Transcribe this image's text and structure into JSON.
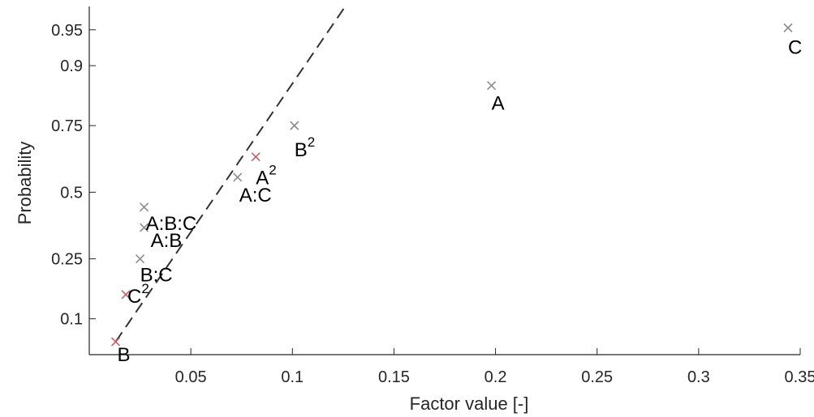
{
  "chart_data": {
    "type": "scatter",
    "title": "",
    "xlabel": "Factor value [-]",
    "ylabel": "Probability",
    "xlim": [
      0,
      0.35
    ],
    "ylim": [
      0.05,
      0.97
    ],
    "x_ticks": [
      {
        "value": 0.05,
        "label": "0.05"
      },
      {
        "value": 0.1,
        "label": "0.1"
      },
      {
        "value": 0.15,
        "label": "0.15"
      },
      {
        "value": 0.2,
        "label": "0.2"
      },
      {
        "value": 0.25,
        "label": "0.25"
      },
      {
        "value": 0.3,
        "label": "0.3"
      },
      {
        "value": 0.35,
        "label": "0.35"
      }
    ],
    "y_ticks": [
      {
        "value": 0.1,
        "label": "0.1"
      },
      {
        "value": 0.25,
        "label": "0.25"
      },
      {
        "value": 0.5,
        "label": "0.5"
      },
      {
        "value": 0.75,
        "label": "0.75"
      },
      {
        "value": 0.9,
        "label": "0.9"
      },
      {
        "value": 0.95,
        "label": "0.95"
      }
    ],
    "y_scale": "normal-probability",
    "grid": false,
    "marker_color": "#8c8c8c",
    "highlight_marker_color": "#c0606a",
    "reference_line": {
      "style": "dashed",
      "color": "#333333",
      "from": {
        "x": 0.013,
        "y": 0.065
      },
      "to": {
        "x": 0.126,
        "y": 0.97
      }
    },
    "points": [
      {
        "x": 0.013,
        "y": 0.065,
        "label": "B",
        "sup": "",
        "highlight": true
      },
      {
        "x": 0.018,
        "y": 0.15,
        "label": "C",
        "sup": "2",
        "highlight": true
      },
      {
        "x": 0.025,
        "y": 0.25,
        "label": "B:C",
        "sup": "",
        "highlight": false
      },
      {
        "x": 0.027,
        "y": 0.36,
        "label": "A:B",
        "sup": "",
        "highlight": false
      },
      {
        "x": 0.027,
        "y": 0.44,
        "label": "A:B:C",
        "sup": "",
        "highlight": false
      },
      {
        "x": 0.073,
        "y": 0.56,
        "label": "A:C",
        "sup": "",
        "highlight": false
      },
      {
        "x": 0.082,
        "y": 0.64,
        "label": "A",
        "sup": "2",
        "highlight": true
      },
      {
        "x": 0.101,
        "y": 0.75,
        "label": "B",
        "sup": "2",
        "highlight": false
      },
      {
        "x": 0.198,
        "y": 0.86,
        "label": "A",
        "sup": "",
        "highlight": false
      },
      {
        "x": 0.344,
        "y": 0.952,
        "label": "C",
        "sup": "",
        "highlight": false
      }
    ]
  }
}
